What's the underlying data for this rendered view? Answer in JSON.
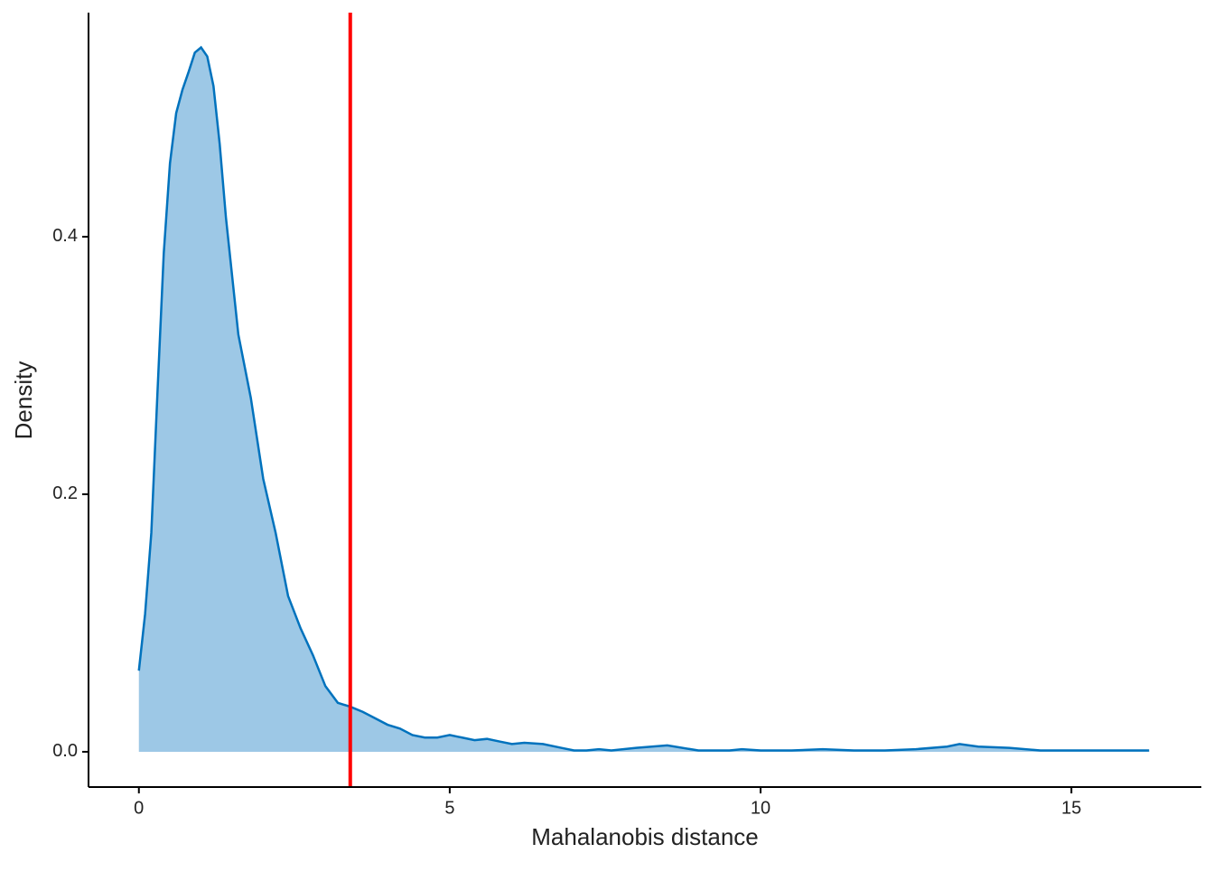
{
  "chart_data": {
    "type": "density",
    "xlabel": "Mahalanobis distance",
    "ylabel": "Density",
    "x": [
      0,
      0.1,
      0.2,
      0.3,
      0.4,
      0.5,
      0.6,
      0.7,
      0.8,
      0.9,
      1.0,
      1.1,
      1.2,
      1.3,
      1.4,
      1.6,
      1.8,
      2.0,
      2.2,
      2.4,
      2.6,
      2.8,
      3.0,
      3.2,
      3.4,
      3.6,
      3.8,
      4.0,
      4.2,
      4.4,
      4.6,
      4.8,
      5.0,
      5.2,
      5.4,
      5.6,
      5.8,
      6.0,
      6.2,
      6.5,
      6.8,
      7.0,
      7.2,
      7.4,
      7.6,
      8.0,
      8.5,
      9.0,
      9.5,
      9.7,
      10.0,
      10.5,
      11.0,
      11.5,
      12.0,
      12.5,
      13.0,
      13.2,
      13.5,
      14.0,
      14.5,
      15.0,
      15.5,
      16.0,
      16.25
    ],
    "values": [
      0.063,
      0.107,
      0.17,
      0.28,
      0.387,
      0.457,
      0.496,
      0.514,
      0.528,
      0.543,
      0.547,
      0.54,
      0.517,
      0.472,
      0.415,
      0.324,
      0.275,
      0.212,
      0.17,
      0.121,
      0.096,
      0.075,
      0.051,
      0.038,
      0.035,
      0.031,
      0.026,
      0.021,
      0.018,
      0.013,
      0.011,
      0.011,
      0.013,
      0.011,
      0.009,
      0.01,
      0.008,
      0.006,
      0.007,
      0.006,
      0.003,
      0.001,
      0.001,
      0.002,
      0.001,
      0.003,
      0.005,
      0.001,
      0.001,
      0.002,
      0.001,
      0.001,
      0.002,
      0.001,
      0.001,
      0.002,
      0.004,
      0.006,
      0.004,
      0.003,
      0.001,
      0.001,
      0.001,
      0.001,
      0.001
    ],
    "line_color": "#0072bd",
    "fill_color": "#9dc8e6",
    "vline": {
      "value": 3.4,
      "color": "#ff0000"
    },
    "xlim": [
      -0.81,
      17.09
    ],
    "ylim": [
      -0.0274,
      0.574
    ],
    "xticks": [
      0,
      5,
      10,
      15
    ],
    "yticks": [
      {
        "value": 0,
        "label": "0.0"
      },
      0.2,
      0.4
    ]
  }
}
